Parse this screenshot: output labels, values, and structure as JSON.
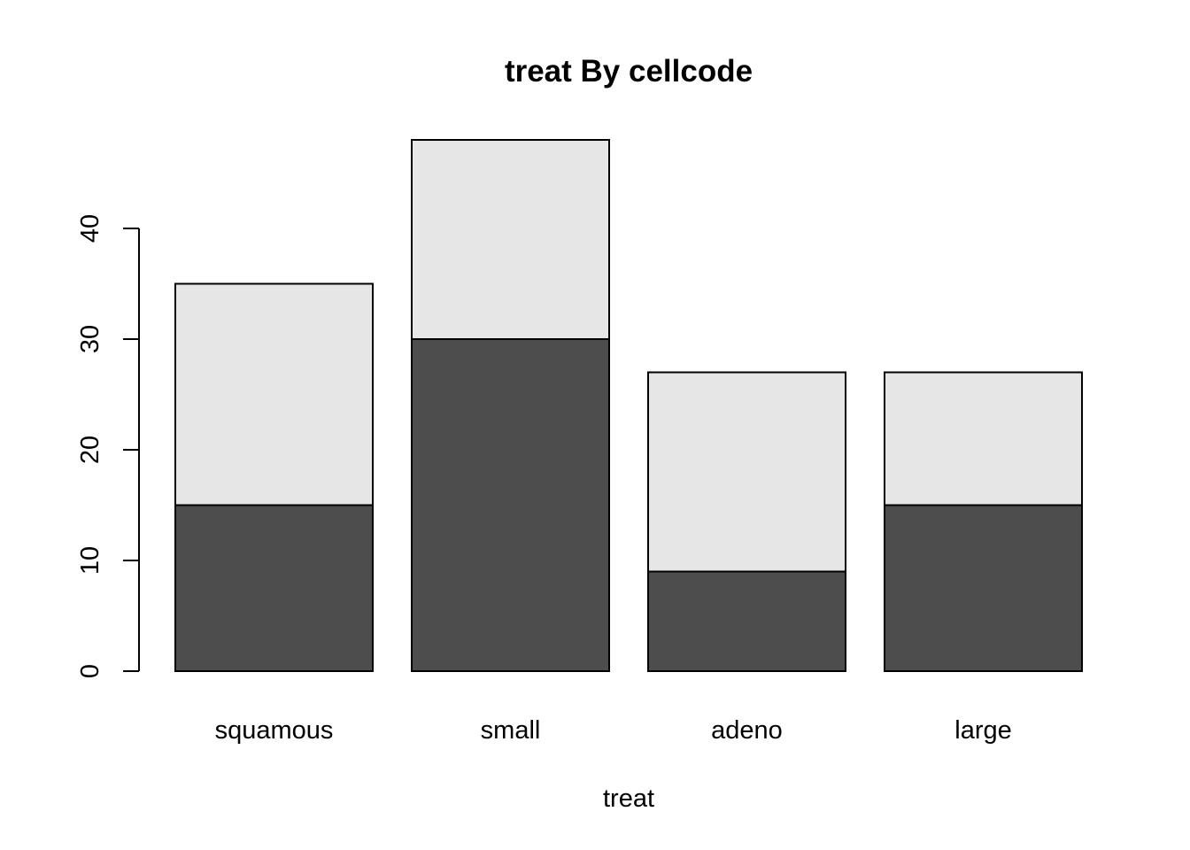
{
  "chart_data": {
    "type": "bar",
    "stacked": true,
    "title": "treat By cellcode",
    "xlabel": "treat",
    "ylabel": "",
    "categories": [
      "squamous",
      "small",
      "adeno",
      "large"
    ],
    "series": [
      {
        "values": [
          15,
          30,
          9,
          15
        ],
        "color": "#4d4d4d"
      },
      {
        "values": [
          20,
          18,
          18,
          12
        ],
        "color": "#e6e6e6"
      }
    ],
    "ylim": [
      0,
      48
    ],
    "yticks": [
      0,
      10,
      20,
      30,
      40
    ],
    "legend": "none",
    "grid": false
  }
}
